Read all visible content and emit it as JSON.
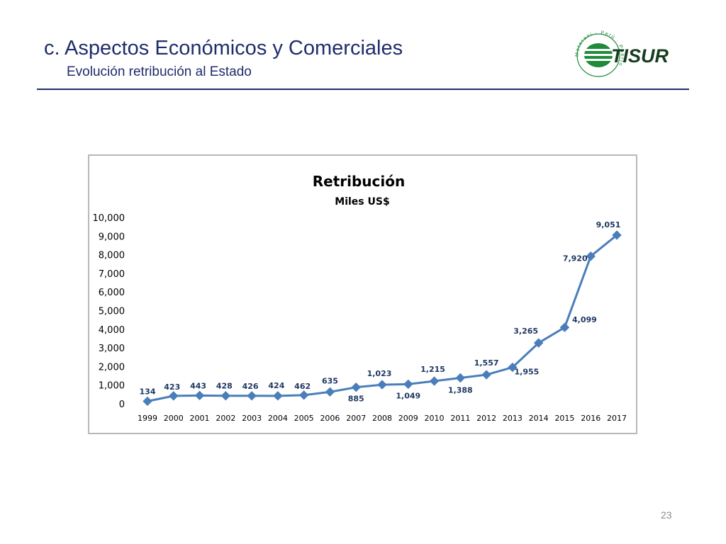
{
  "header": {
    "title": "c. Aspectos Económicos y Comerciales",
    "subtitle": "Evolución retribución al Estado"
  },
  "logo": {
    "text": "TISUR",
    "arc_text": "Matarani · Perú · Puerto de",
    "colors": {
      "green": "#1f8a3a",
      "dark": "#163d1e"
    }
  },
  "chart_data": {
    "type": "line",
    "title": "Retribución",
    "subtitle": "Miles US$",
    "x": [
      "1999",
      "2000",
      "2001",
      "2002",
      "2003",
      "2004",
      "2005",
      "2006",
      "2007",
      "2008",
      "2009",
      "2010",
      "2011",
      "2012",
      "2013",
      "2014",
      "2015",
      "2016",
      "2017"
    ],
    "series": [
      {
        "values": [
          134,
          423,
          443,
          428,
          426,
          424,
          462,
          635,
          885,
          1023,
          1049,
          1215,
          1388,
          1557,
          1955,
          3265,
          4099,
          7920,
          9051
        ],
        "labels": [
          "134",
          "423",
          "443",
          "428",
          "426",
          "424",
          "462",
          "635",
          "885",
          "1,023",
          "1,049",
          "1,215",
          "1,388",
          "1,557",
          "1,955",
          "3,265",
          "4,099",
          "7,920",
          "9,051"
        ]
      }
    ],
    "ylim": [
      0,
      10000
    ],
    "yticks": [
      0,
      1000,
      2000,
      3000,
      4000,
      5000,
      6000,
      7000,
      8000,
      9000,
      10000
    ],
    "ytick_labels": [
      "0",
      "1,000",
      "2,000",
      "3,000",
      "4,000",
      "5,000",
      "6,000",
      "7,000",
      "8,000",
      "9,000",
      "10,000"
    ],
    "marker": "diamond",
    "grid": false,
    "legend": "none",
    "colors": {
      "line": "#4a7ebb",
      "label": "#1f3864",
      "axis_text": "#000000"
    }
  },
  "footer": {
    "page_number": "23"
  }
}
